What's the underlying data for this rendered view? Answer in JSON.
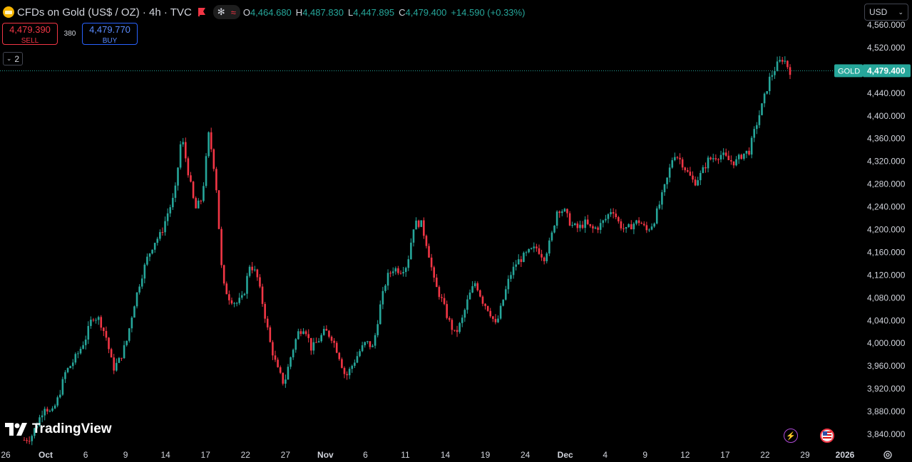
{
  "header": {
    "title": "CFDs on Gold (US$ / OZ) · 4h · TVC",
    "pill_icons": [
      "asterisk-icon",
      "wave-icon"
    ],
    "ohlc": [
      {
        "key": "O",
        "value": "4,464.680"
      },
      {
        "key": "H",
        "value": "4,487.830"
      },
      {
        "key": "L",
        "value": "4,447.895"
      },
      {
        "key": "C",
        "value": "4,479.400"
      },
      {
        "key": "",
        "value": "+14.590 (+0.33%)"
      }
    ]
  },
  "trade": {
    "sell_price": "4,479.390",
    "sell_label": "SELL",
    "spread": "380",
    "buy_price": "4,479.770",
    "buy_label": "BUY"
  },
  "indicators_count": "2",
  "currency": "USD",
  "price_label": {
    "symbol": "GOLD",
    "price": "4,479.400",
    "value": 4479.4
  },
  "logo_text": "TradingView",
  "colors": {
    "up": "#26a69a",
    "down": "#f23645",
    "background": "#000000",
    "text": "#d1d4dc"
  },
  "chart_data": {
    "type": "candlestick",
    "timeframe": "4h",
    "ylim": [
      3820,
      4570
    ],
    "y_ticks": [
      "3,840.000",
      "3,880.000",
      "3,920.000",
      "3,960.000",
      "4,000.000",
      "4,040.000",
      "4,080.000",
      "4,120.000",
      "4,160.000",
      "4,200.000",
      "4,240.000",
      "4,280.000",
      "4,320.000",
      "4,360.000",
      "4,400.000",
      "4,440.000",
      "4,480.000",
      "4,520.000",
      "4,560.000"
    ],
    "y_tick_values": [
      3840,
      3880,
      3920,
      3960,
      4000,
      4040,
      4080,
      4120,
      4160,
      4200,
      4240,
      4280,
      4320,
      4360,
      4400,
      4440,
      4480,
      4520,
      4560
    ],
    "x_ticks": [
      "26",
      "Oct",
      "6",
      "9",
      "14",
      "17",
      "22",
      "27",
      "Nov",
      "6",
      "11",
      "14",
      "19",
      "24",
      "Dec",
      "4",
      "9",
      "12",
      "17",
      "22",
      "29",
      "2026"
    ],
    "x_tick_bold": [
      "Oct",
      "Nov",
      "Dec",
      "2026"
    ],
    "series": [
      {
        "close": [
          3830,
          3835,
          3862,
          3890,
          3875,
          3905,
          3948,
          3965,
          3985,
          4010,
          4048,
          4042,
          4010,
          3955,
          3972,
          4005,
          4065,
          4112,
          4150,
          4178,
          4192,
          4230,
          4260,
          4365,
          4300,
          4235,
          4255,
          4370,
          4290,
          4105,
          4080,
          4070,
          4080,
          4140,
          4120,
          4062,
          3998,
          3955,
          3928,
          3978,
          4018,
          4030,
          3990,
          4005,
          4022,
          4010,
          3980,
          3940,
          3962,
          3985,
          4002,
          3992,
          4062,
          4115,
          4132,
          4128,
          4138,
          4210,
          4212,
          4168,
          4105,
          4078,
          4042,
          4015,
          4040,
          4082,
          4108,
          4075,
          4058,
          4030,
          4075,
          4118,
          4142,
          4152,
          4162,
          4168,
          4150,
          4182,
          4238,
          4232,
          4208,
          4202,
          4212,
          4200,
          4205,
          4218,
          4238,
          4210,
          4198,
          4210,
          4215,
          4198,
          4212,
          4248,
          4288,
          4335,
          4322,
          4300,
          4282,
          4298,
          4322,
          4328,
          4332,
          4322,
          4318,
          4332,
          4338,
          4382,
          4422,
          4465,
          4488,
          4502,
          4479
        ]
      }
    ]
  }
}
